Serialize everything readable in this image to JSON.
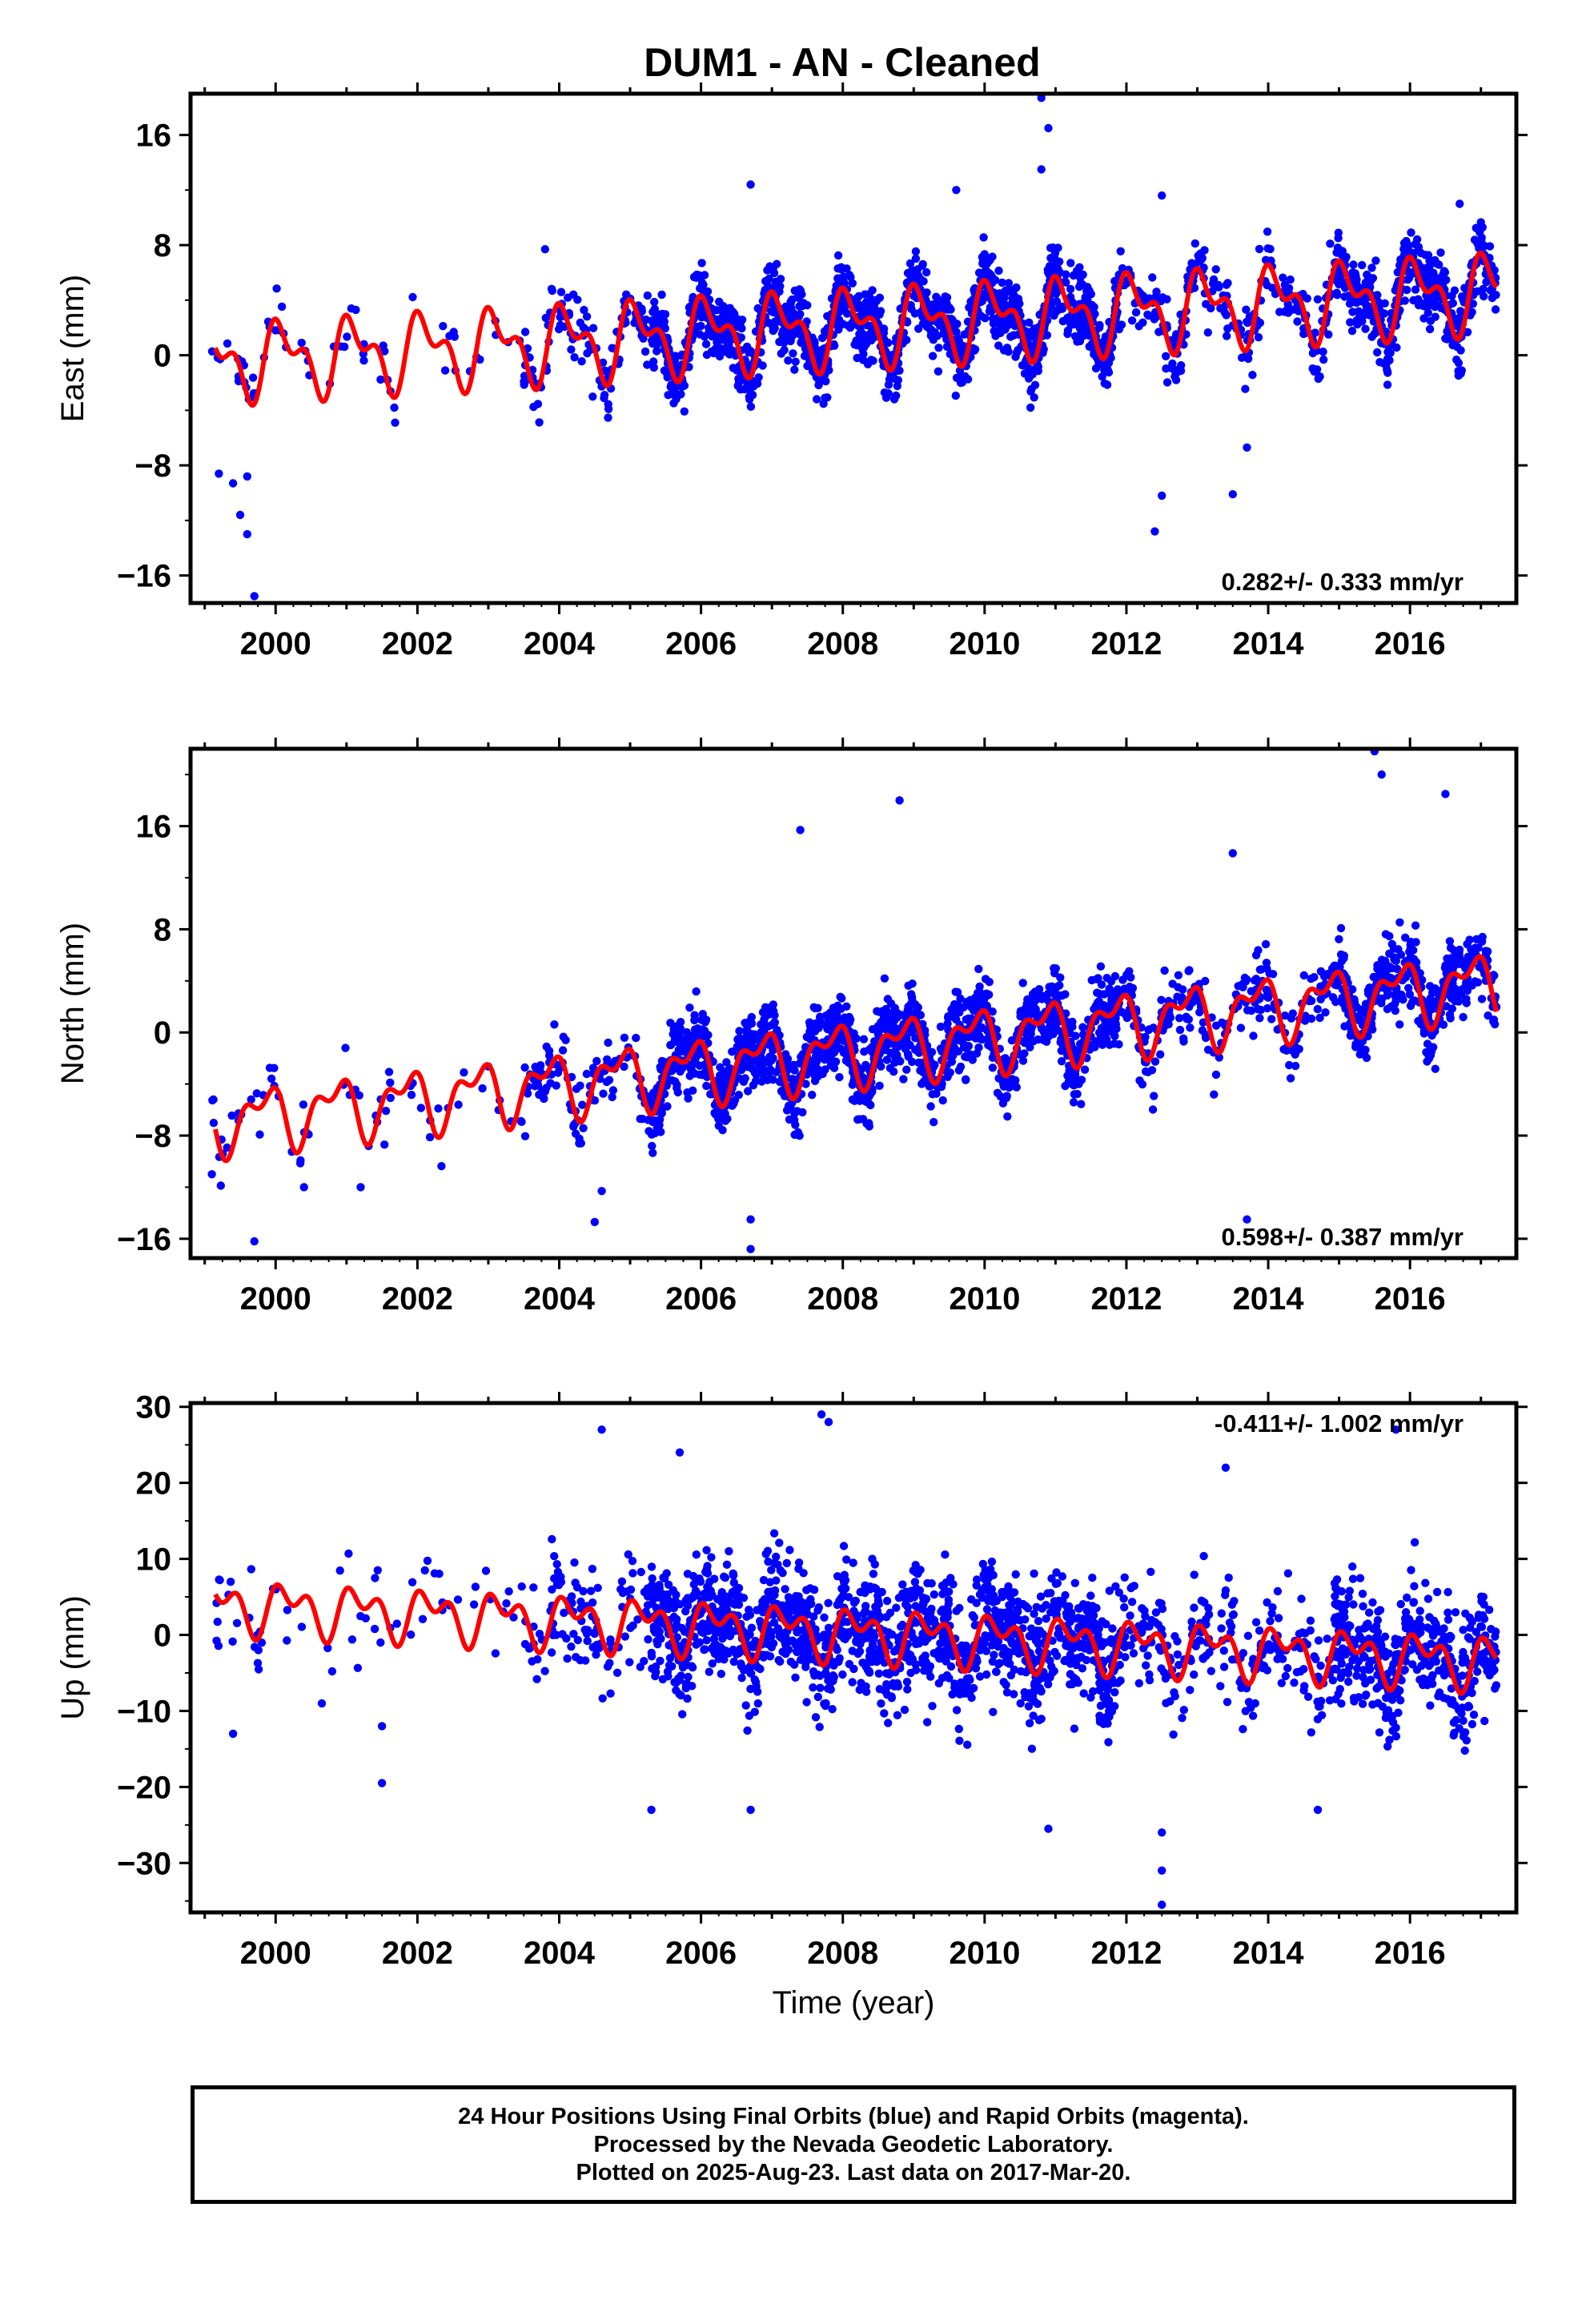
{
  "title": "DUM1  - AN - Cleaned",
  "colors": {
    "points": "#0000ff",
    "model": "#ff0000",
    "axes": "#000000"
  },
  "footer": {
    "line1": "24 Hour Positions Using Final Orbits (blue) and Rapid Orbits (magenta).",
    "line2": "Processed by the Nevada Geodetic Laboratory.",
    "line3": "Plotted on 2025-Aug-23. Last data on 2017-Mar-20."
  },
  "chart_data": [
    {
      "type": "scatter",
      "title": "DUM1  - AN - Cleaned",
      "xlabel": "",
      "ylabel": "East (mm)",
      "xlim": [
        1998.8,
        2017.5
      ],
      "ylim": [
        -18,
        19
      ],
      "xticks": [
        "2000",
        "2002",
        "2004",
        "2006",
        "2008",
        "2010",
        "2012",
        "2014",
        "2016"
      ],
      "yticks": [
        "−16",
        "−8",
        "0",
        "8",
        "16"
      ],
      "rate_label": "0.282+/- 0.333 mm/yr",
      "rate_position": "bottom-right",
      "model_line": {
        "offset": -0.5,
        "rate": 0.282,
        "annual_amplitude": 2.2,
        "semiannual_amplitude": 1.4,
        "annual_phase": 0.9,
        "semiannual_phase": 2.2
      },
      "scatter_summary": {
        "points_estimated": true,
        "spread": 2.0,
        "outliers": [
          [
            1999.2,
            -8.6
          ],
          [
            1999.4,
            -9.3
          ],
          [
            1999.5,
            -11.6
          ],
          [
            1999.6,
            -13
          ],
          [
            1999.7,
            -17.5
          ],
          [
            1999.6,
            -8.8
          ],
          [
            2010.8,
            18.7
          ],
          [
            2010.9,
            16.5
          ],
          [
            2010.8,
            13.5
          ],
          [
            2009.6,
            12
          ],
          [
            2006.7,
            12.4
          ],
          [
            2012.4,
            -12.8
          ],
          [
            2012.5,
            -10.2
          ],
          [
            2012.5,
            11.6
          ],
          [
            2013.5,
            -10.1
          ],
          [
            2013.7,
            -6.7
          ],
          [
            2003.8,
            7.7
          ],
          [
            2016.7,
            11
          ]
        ]
      }
    },
    {
      "type": "scatter",
      "title": "",
      "xlabel": "",
      "ylabel": "North (mm)",
      "xlim": [
        1998.8,
        2017.5
      ],
      "ylim": [
        -17.5,
        22
      ],
      "xticks": [
        "2000",
        "2002",
        "2004",
        "2006",
        "2008",
        "2010",
        "2012",
        "2014",
        "2016"
      ],
      "yticks": [
        "−16",
        "−8",
        "0",
        "8",
        "16"
      ],
      "rate_label": "0.598+/- 0.387 mm/yr",
      "rate_position": "bottom-right",
      "model_line": {
        "offset": -7,
        "rate": 0.598,
        "annual_amplitude": 2.0,
        "semiannual_amplitude": 1.2,
        "annual_phase": 2.6,
        "semiannual_phase": 1.1
      },
      "scatter_summary": {
        "points_estimated": true,
        "spread": 2.2,
        "outliers": [
          [
            2015.5,
            21.8
          ],
          [
            2015.6,
            20
          ],
          [
            2016.5,
            18.5
          ],
          [
            2008.8,
            18
          ],
          [
            2007.4,
            15.7
          ],
          [
            2013.5,
            13.9
          ],
          [
            2006.7,
            -16.8
          ],
          [
            2006.7,
            -14.5
          ],
          [
            1999.7,
            -16.2
          ],
          [
            2004.5,
            -14.7
          ],
          [
            2013.7,
            -14.5
          ],
          [
            1999.1,
            -11
          ],
          [
            2000.4,
            -12
          ],
          [
            2001.2,
            -12
          ],
          [
            2004.6,
            -12.3
          ]
        ]
      }
    },
    {
      "type": "scatter",
      "title": "",
      "xlabel": "Time (year)",
      "ylabel": "Up (mm)",
      "xlim": [
        1998.8,
        2017.5
      ],
      "ylim": [
        -36.5,
        30.5
      ],
      "xticks": [
        "2000",
        "2002",
        "2004",
        "2006",
        "2008",
        "2010",
        "2012",
        "2014",
        "2016"
      ],
      "yticks": [
        "−30",
        "−20",
        "−10",
        "0",
        "10",
        "20",
        "30"
      ],
      "rate_label": "-0.411+/- 1.002 mm/yr",
      "rate_position": "top-right",
      "model_line": {
        "offset": 4,
        "rate": -0.411,
        "annual_amplitude": 2.5,
        "semiannual_amplitude": 2.0,
        "annual_phase": 0.4,
        "semiannual_phase": 1.8
      },
      "scatter_summary": {
        "points_estimated": true,
        "spread": 6.0,
        "outliers": [
          [
            2007.7,
            29
          ],
          [
            2007.8,
            28
          ],
          [
            2004.6,
            27
          ],
          [
            2015.8,
            27
          ],
          [
            2005.7,
            24
          ],
          [
            2013.4,
            22
          ],
          [
            2012.5,
            -35.5
          ],
          [
            2012.5,
            -31
          ],
          [
            2012.5,
            -26
          ],
          [
            2010.9,
            -25.5
          ],
          [
            2005.3,
            -23
          ],
          [
            2006.7,
            -23
          ],
          [
            2014.7,
            -23
          ],
          [
            2001.5,
            -19.5
          ],
          [
            1999.4,
            -13
          ],
          [
            2001.5,
            -12
          ]
        ]
      }
    }
  ]
}
